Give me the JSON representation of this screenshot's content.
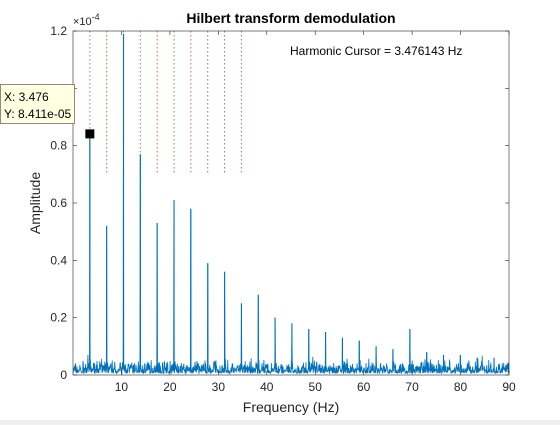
{
  "chart_data": {
    "type": "line",
    "title": "Hilbert transform demodulation",
    "xlabel": "Frequency (Hz)",
    "ylabel": "Amplitude",
    "y_exponent_label": "×10",
    "y_exponent": "-4",
    "xlim": [
      0,
      90
    ],
    "ylim": [
      0,
      1.2
    ],
    "x_ticks": [
      10,
      20,
      30,
      40,
      50,
      60,
      70,
      80,
      90
    ],
    "x_tick_labels": [
      "10",
      "20",
      "30",
      "40",
      "50",
      "60",
      "70",
      "80",
      "90"
    ],
    "y_ticks": [
      0,
      0.2,
      0.4,
      0.6,
      0.8,
      1.0,
      1.2
    ],
    "y_tick_labels": [
      "0",
      "0.2",
      "0.4",
      "0.6",
      "0.8",
      "1",
      "1.2"
    ],
    "line_color": "#0072bd",
    "noise_floor": 0.04,
    "peaks": [
      {
        "x": 3.476,
        "y": 0.8411
      },
      {
        "x": 6.95,
        "y": 0.52
      },
      {
        "x": 10.43,
        "y": 1.19
      },
      {
        "x": 13.9,
        "y": 0.77
      },
      {
        "x": 17.38,
        "y": 0.53
      },
      {
        "x": 20.86,
        "y": 0.61
      },
      {
        "x": 24.33,
        "y": 0.58
      },
      {
        "x": 27.81,
        "y": 0.39
      },
      {
        "x": 31.29,
        "y": 0.36
      },
      {
        "x": 34.76,
        "y": 0.25
      },
      {
        "x": 38.24,
        "y": 0.28
      },
      {
        "x": 41.71,
        "y": 0.2
      },
      {
        "x": 45.19,
        "y": 0.18
      },
      {
        "x": 48.67,
        "y": 0.16
      },
      {
        "x": 52.14,
        "y": 0.15
      },
      {
        "x": 55.62,
        "y": 0.13
      },
      {
        "x": 59.1,
        "y": 0.12
      },
      {
        "x": 62.57,
        "y": 0.1
      },
      {
        "x": 66.05,
        "y": 0.09
      },
      {
        "x": 69.53,
        "y": 0.16
      },
      {
        "x": 73.0,
        "y": 0.08
      },
      {
        "x": 76.48,
        "y": 0.07
      },
      {
        "x": 79.95,
        "y": 0.07
      },
      {
        "x": 83.43,
        "y": 0.06
      },
      {
        "x": 86.91,
        "y": 0.06
      }
    ],
    "harmonic_cursor": {
      "label": "Harmonic Cursor = 3.476143 Hz",
      "fundamental": 3.476143,
      "harmonic_count": 10,
      "line_color": "#e06060"
    },
    "datatip": {
      "x": 3.476,
      "y": 0.8411,
      "x_text": "X: 3.476",
      "y_text": "Y: 8.411e-05"
    }
  }
}
